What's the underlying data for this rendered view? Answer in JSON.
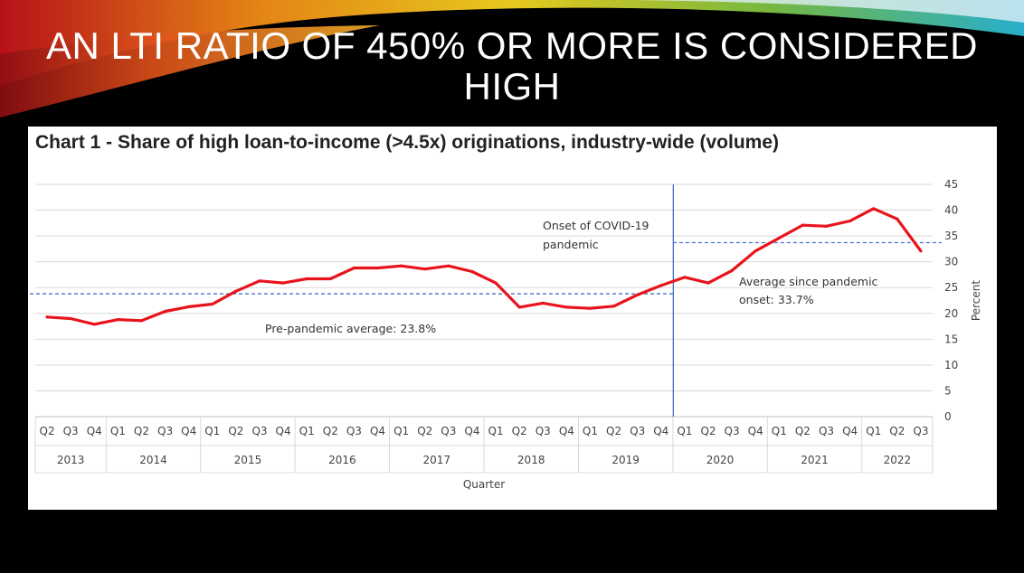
{
  "slide": {
    "title": "AN LTI RATIO OF 450% OR MORE IS CONSIDERED HIGH"
  },
  "chart_data": {
    "type": "line",
    "title": "Chart 1 - Share of high loan-to-income (>4.5x) originations, industry-wide (volume)",
    "xlabel": "Quarter",
    "ylabel": "Percent",
    "ylim": [
      0,
      45
    ],
    "yticks": [
      0,
      5,
      10,
      15,
      20,
      25,
      30,
      35,
      40,
      45
    ],
    "y_axis_side": "right",
    "grid": true,
    "categories": [
      "Q2",
      "Q3",
      "Q4",
      "Q1",
      "Q2",
      "Q3",
      "Q4",
      "Q1",
      "Q2",
      "Q3",
      "Q4",
      "Q1",
      "Q2",
      "Q3",
      "Q4",
      "Q1",
      "Q2",
      "Q3",
      "Q4",
      "Q1",
      "Q2",
      "Q3",
      "Q4",
      "Q1",
      "Q2",
      "Q3",
      "Q4",
      "Q1",
      "Q2",
      "Q3",
      "Q4",
      "Q1",
      "Q2",
      "Q3",
      "Q4",
      "Q1",
      "Q2",
      "Q3"
    ],
    "years": [
      {
        "label": "2013",
        "count": 3
      },
      {
        "label": "2014",
        "count": 4
      },
      {
        "label": "2015",
        "count": 4
      },
      {
        "label": "2016",
        "count": 4
      },
      {
        "label": "2017",
        "count": 4
      },
      {
        "label": "2018",
        "count": 4
      },
      {
        "label": "2019",
        "count": 4
      },
      {
        "label": "2020",
        "count": 4
      },
      {
        "label": "2021",
        "count": 4
      },
      {
        "label": "2022",
        "count": 3
      }
    ],
    "series": [
      {
        "color": "#e8141c",
        "values": [
          19.3,
          19.0,
          17.9,
          18.8,
          18.6,
          20.4,
          21.3,
          21.8,
          24.3,
          26.3,
          25.9,
          26.7,
          26.7,
          28.8,
          28.8,
          29.2,
          28.6,
          29.2,
          28.1,
          25.9,
          21.2,
          22.0,
          21.2,
          21.0,
          21.4,
          23.6,
          25.4,
          27.0,
          25.9,
          28.3,
          32.1,
          34.6,
          37.1,
          36.9,
          37.9,
          40.3,
          38.3,
          32.1
        ]
      }
    ],
    "reference_lines": [
      {
        "label": "Pre-pandemic average: 23.8%",
        "value": 23.8,
        "from_index": 0,
        "to_index": 26,
        "color": "#4472c4"
      },
      {
        "label_lines": [
          "Average since pandemic",
          "onset: 33.7%"
        ],
        "value": 33.7,
        "from_index": 27,
        "to_index": 37,
        "color": "#4472c4"
      }
    ],
    "event_marker": {
      "label_lines": [
        "Onset of COVID-19",
        "pandemic"
      ],
      "between_index": [
        26,
        27
      ],
      "color": "#4472c4"
    }
  }
}
